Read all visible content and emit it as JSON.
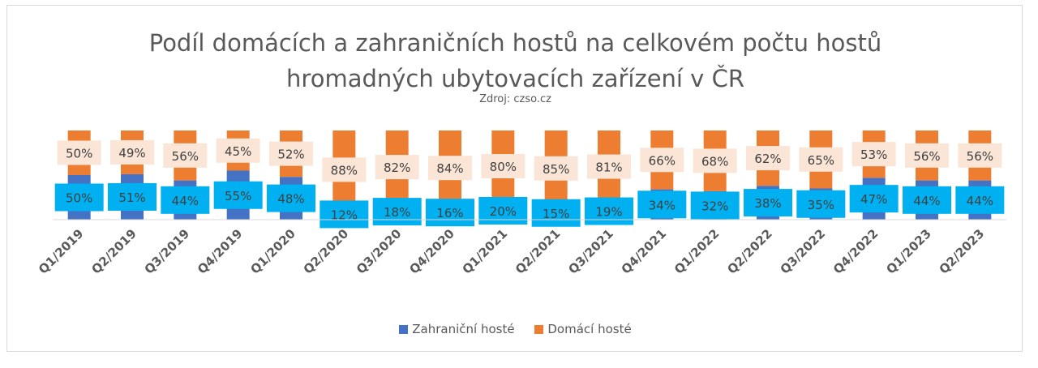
{
  "chart_data": {
    "type": "bar",
    "stacked": true,
    "title_line1": "Podíl domácích a zahraničních hostů na celkovém počtu hostů",
    "title_line2": "hromadných ubytovacích zařízení v ČR",
    "subtitle": "Zdroj: czso.cz",
    "categories": [
      "Q1/2019",
      "Q2/2019",
      "Q3/2019",
      "Q4/2019",
      "Q1/2020",
      "Q2/2020",
      "Q3/2020",
      "Q4/2020",
      "Q1/2021",
      "Q2/2021",
      "Q3/2021",
      "Q4/2021",
      "Q1/2022",
      "Q2/2022",
      "Q3/2022",
      "Q4/2022",
      "Q1/2023",
      "Q2/2023"
    ],
    "series": [
      {
        "name": "Zahraniční hosté",
        "color": "#4472c4",
        "label_bg": "#00b0f0",
        "values": [
          50,
          51,
          44,
          55,
          48,
          12,
          18,
          16,
          20,
          15,
          19,
          34,
          32,
          38,
          35,
          47,
          44,
          44
        ],
        "labels": [
          "50%",
          "51%",
          "44%",
          "55%",
          "48%",
          "12%",
          "18%",
          "16%",
          "20%",
          "15%",
          "19%",
          "34%",
          "32%",
          "38%",
          "35%",
          "47%",
          "44%",
          "44%"
        ]
      },
      {
        "name": "Domácí hosté",
        "color": "#ed7d31",
        "label_bg": "#fbe5d6",
        "values": [
          50,
          49,
          56,
          45,
          52,
          88,
          82,
          84,
          80,
          85,
          81,
          66,
          68,
          62,
          65,
          53,
          56,
          56
        ],
        "labels": [
          "50%",
          "49%",
          "56%",
          "45%",
          "52%",
          "88%",
          "82%",
          "84%",
          "80%",
          "85%",
          "81%",
          "66%",
          "68%",
          "62%",
          "65%",
          "53%",
          "56%",
          "56%"
        ]
      }
    ],
    "ylim": [
      0,
      100
    ],
    "grid": false,
    "legend_position": "bottom"
  }
}
